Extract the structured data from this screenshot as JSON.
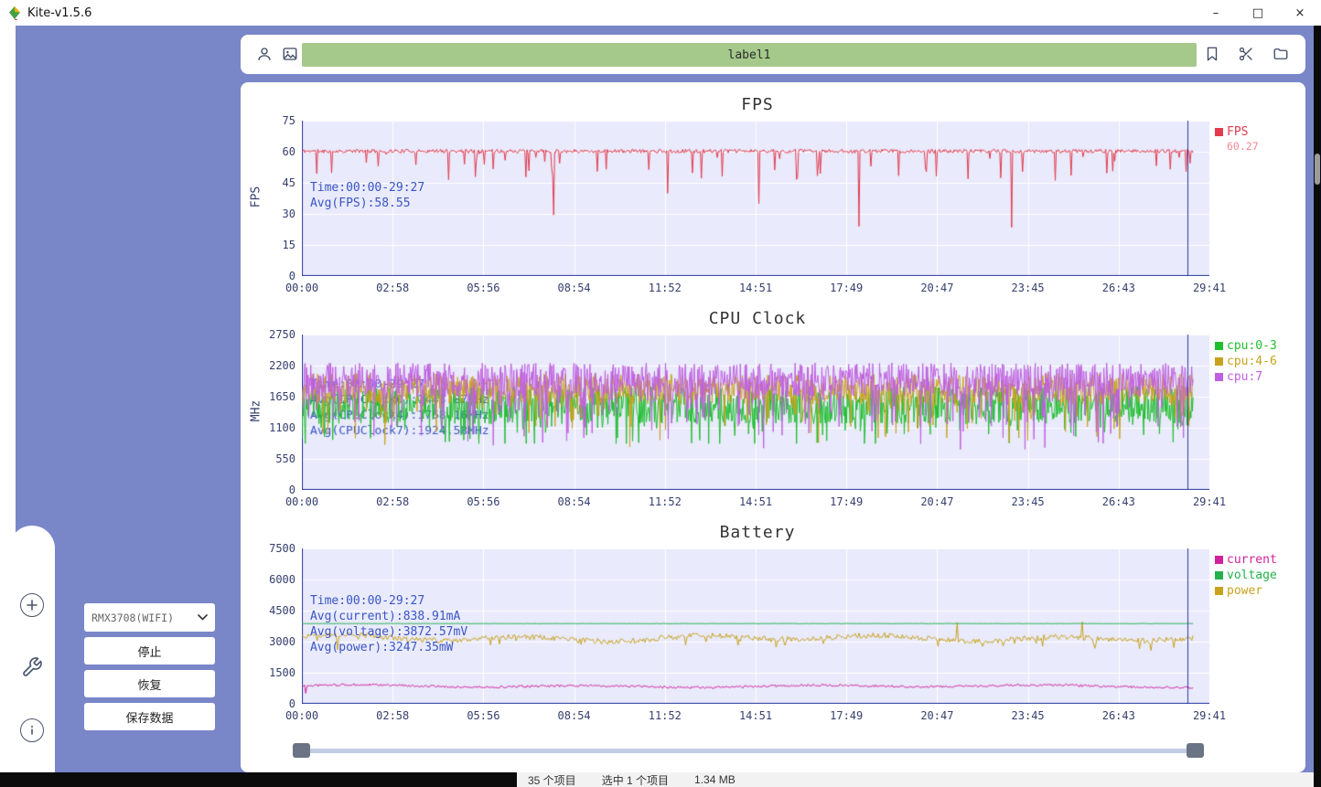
{
  "window": {
    "title": "Kite-v1.5.6",
    "minimize_icon": "–",
    "maximize_icon": "□",
    "close_icon": "×"
  },
  "toolbar": {
    "label": "label1",
    "icons": [
      "user-icon",
      "image-icon",
      "bookmark-icon",
      "scissors-icon",
      "folder-icon"
    ]
  },
  "controls": {
    "device": "RMX3708(WIFI)",
    "stop": "停止",
    "resume": "恢复",
    "save": "保存数据"
  },
  "left_rail": {
    "icons": [
      "plus-circle-icon",
      "wrench-icon",
      "info-icon"
    ]
  },
  "statusbar_behind": {
    "items_count": "35 个项目",
    "selected": "选中 1 个项目",
    "size": "1.34 MB"
  },
  "ui_colors": {
    "background": "#7986c8",
    "panel": "#ffffff",
    "label_bar": "#a5c98b",
    "plot_bg": "#e9eafb",
    "grid": "#ffffff",
    "axis": "#2c3a9e",
    "cursor": "#2c3a9e",
    "tick_text": "#36406e",
    "annotation": "#3a56c5",
    "title_text": "#333333"
  },
  "chart_data": [
    {
      "type": "line",
      "title": "FPS",
      "ylabel": "FPS",
      "ylim": [
        0,
        75
      ],
      "yticks": [
        0,
        15,
        30,
        45,
        60,
        75
      ],
      "xticks": [
        "00:00",
        "02:58",
        "05:56",
        "08:54",
        "11:52",
        "14:51",
        "17:49",
        "20:47",
        "23:45",
        "26:43",
        "29:41"
      ],
      "legend": [
        {
          "label": "FPS",
          "color": "#e23b4e",
          "value": "60.27"
        }
      ],
      "annotation": {
        "lines": [
          "Time:00:00-29:27",
          "Avg(FPS):58.55"
        ],
        "x": 0.005,
        "y": 0.38,
        "layer": "over"
      },
      "cursor_x": 0.976,
      "data_end": 0.982,
      "grid": true,
      "legend_position": "right",
      "series": [
        {
          "name": "FPS",
          "color": "#e23b4e",
          "points": 900,
          "seed": 11,
          "base": 60.3,
          "noise": 0.9,
          "spike_prob": 0.07,
          "spike_max": 14,
          "min": 22,
          "max": 61.6,
          "dips": [
            {
              "x": 0.283,
              "v": 29.5
            },
            {
              "x": 0.41,
              "v": 40
            },
            {
              "x": 0.513,
              "v": 35
            },
            {
              "x": 0.625,
              "v": 24
            },
            {
              "x": 0.796,
              "v": 23.5
            }
          ]
        }
      ]
    },
    {
      "type": "line",
      "title": "CPU Clock",
      "ylabel": "MHz",
      "ylim": [
        0,
        2750
      ],
      "yticks": [
        0,
        550,
        1100,
        1650,
        2200,
        2750
      ],
      "xticks": [
        "00:00",
        "02:58",
        "05:56",
        "08:54",
        "11:52",
        "14:51",
        "17:49",
        "20:47",
        "23:45",
        "26:43",
        "29:41"
      ],
      "legend": [
        {
          "label": "cpu:0-3",
          "color": "#1fbf2f"
        },
        {
          "label": "cpu:4-6",
          "color": "#c8a21d"
        },
        {
          "label": "cpu:7",
          "color": "#c05fe0"
        }
      ],
      "annotation": {
        "lines": [
          "Time:00:00-29:27",
          "Avg(CPUClock0):1443.87MHz",
          "Avg(CPUClock4):1768.16MHz",
          "Avg(CPUClock7):1924.58MHz"
        ],
        "x": 0.005,
        "y": 0.27,
        "layer": "under"
      },
      "cursor_x": 0.976,
      "data_end": 0.982,
      "grid": true,
      "legend_position": "right",
      "series": [
        {
          "name": "cpu:0-3",
          "color": "#1fbf2f",
          "points": 1300,
          "seed": 23,
          "base": 1500,
          "noise": 330,
          "spike_prob": 0.1,
          "spike_max": 520,
          "min": 820,
          "max": 2230
        },
        {
          "name": "cpu:4-6",
          "color": "#c8a21d",
          "points": 1300,
          "seed": 37,
          "base": 1790,
          "noise": 270,
          "spike_prob": 0.13,
          "spike_max": 800,
          "min": 760,
          "max": 2240
        },
        {
          "name": "cpu:7",
          "color": "#c05fe0",
          "points": 1300,
          "seed": 51,
          "base": 1950,
          "noise": 300,
          "spike_prob": 0.18,
          "spike_max": 1000,
          "min": 700,
          "max": 2310
        }
      ]
    },
    {
      "type": "line",
      "title": "Battery",
      "ylabel": "",
      "ylim": [
        0,
        7500
      ],
      "yticks": [
        0,
        1500,
        3000,
        4500,
        6000,
        7500
      ],
      "xticks": [
        "00:00",
        "02:58",
        "05:56",
        "08:54",
        "11:52",
        "14:51",
        "17:49",
        "20:47",
        "23:45",
        "26:43",
        "29:41"
      ],
      "legend": [
        {
          "label": "current",
          "color": "#d1219c"
        },
        {
          "label": "voltage",
          "color": "#22b14c"
        },
        {
          "label": "power",
          "color": "#c8a21d"
        }
      ],
      "annotation": {
        "lines": [
          "Time:00:00-29:27",
          "Avg(current):838.91mA",
          "Avg(voltage):3872.57mV",
          "Avg(power):3247.35mW"
        ],
        "x": 0.005,
        "y": 0.29,
        "layer": "over"
      },
      "cursor_x": 0.976,
      "data_end": 0.982,
      "grid": true,
      "legend_position": "right",
      "series": [
        {
          "name": "power",
          "color": "#c8a21d",
          "points": 700,
          "seed": 71,
          "base": 3170,
          "noise": 130,
          "wave_amp": 110,
          "wave_freq": 0.045,
          "spike_prob": 0.06,
          "spike_max": 420,
          "min": 2560,
          "max": 3980,
          "dips": [
            {
              "x": 0.04,
              "v": 2600
            },
            {
              "x": 0.735,
              "v": 3930
            },
            {
              "x": 0.875,
              "v": 3960
            }
          ]
        },
        {
          "name": "voltage",
          "color": "#22b14c",
          "points": 700,
          "seed": 83,
          "base": 3872,
          "noise": 10,
          "min": 3830,
          "max": 3915
        },
        {
          "name": "current",
          "color": "#d1219c",
          "points": 700,
          "seed": 97,
          "base": 850,
          "noise": 55,
          "wave_amp": 45,
          "wave_freq": 0.035,
          "min": 620,
          "max": 1040,
          "dips": [
            {
              "x": 0.004,
              "v": 510
            }
          ]
        }
      ]
    }
  ]
}
